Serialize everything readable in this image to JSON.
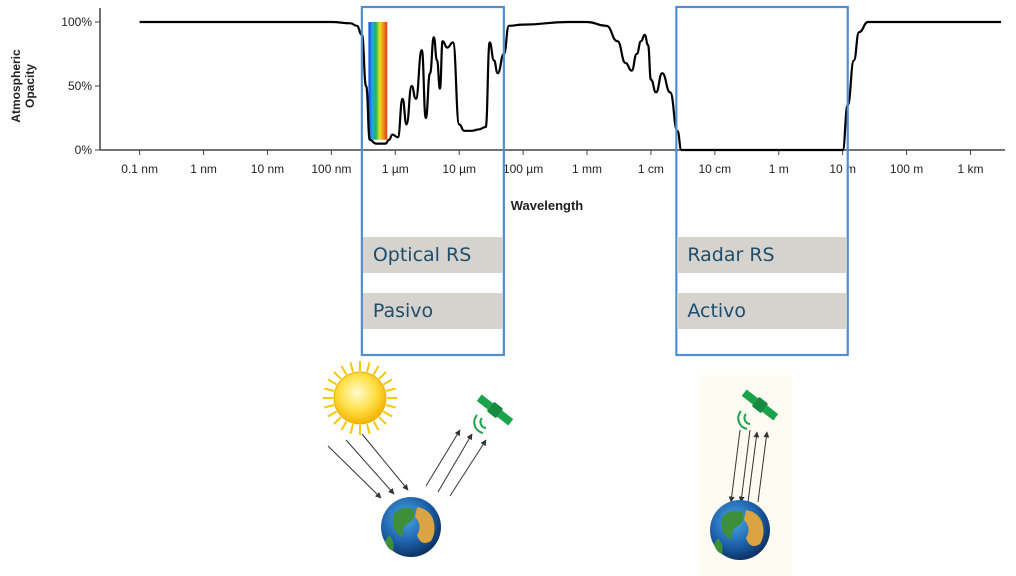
{
  "chart_data": {
    "type": "line",
    "ylabel_lines": [
      "Atmospheric",
      "Opacity"
    ],
    "xlabel": "Wavelength",
    "y_ticks": [
      "0%",
      "50%",
      "100%"
    ],
    "ylim": [
      0,
      100
    ],
    "x_scale": "log",
    "x_ticks": [
      "0.1 nm",
      "1 nm",
      "10 nm",
      "100 nm",
      "1 µm",
      "10 µm",
      "100 µm",
      "1 mm",
      "1 cm",
      "10 cm",
      "1 m",
      "10 m",
      "100 m",
      "1 km"
    ],
    "series": [
      {
        "x_m": [
          1e-10,
          3e-08,
          1e-07,
          2e-07,
          2.5e-07,
          3e-07,
          3.5e-07,
          4e-07,
          5e-07,
          7e-07,
          8e-07,
          9e-07,
          1.1e-06,
          1.3e-06,
          1.5e-06,
          1.8e-06,
          2.1e-06,
          2.6e-06,
          3e-06,
          3.5e-06,
          4e-06,
          4.5e-06,
          5e-06,
          5.5e-06,
          6.5e-06,
          8e-06,
          1e-05,
          1.2e-05,
          1.6e-05,
          2e-05,
          2.6e-05,
          3e-05,
          3.5e-05,
          4e-05,
          5e-05,
          6e-05,
          0.0001,
          0.0005,
          0.001,
          0.002,
          0.003,
          0.004,
          0.005,
          0.006,
          0.007,
          0.008,
          0.009,
          0.01,
          0.012,
          0.015,
          0.02,
          0.026,
          0.03,
          5,
          10,
          12,
          15,
          18,
          25,
          50,
          1000,
          3000
        ],
        "opacity_pct": [
          100,
          100,
          100,
          99,
          97,
          90,
          50,
          8,
          5,
          5,
          8,
          12,
          10,
          40,
          20,
          50,
          40,
          78,
          25,
          60,
          88,
          70,
          48,
          85,
          80,
          84,
          20,
          15,
          15,
          16,
          18,
          84,
          70,
          60,
          75,
          97,
          98,
          100,
          100,
          97,
          85,
          68,
          62,
          75,
          85,
          90,
          82,
          55,
          45,
          60,
          45,
          15,
          0,
          0,
          0,
          35,
          70,
          92,
          100,
          100,
          100,
          100
        ]
      }
    ],
    "visible_spectrum_band": {
      "from_m": 3.8e-07,
      "to_m": 7.5e-07
    }
  },
  "regions": [
    {
      "name": "optical",
      "from_m": 3e-07,
      "to_m": 5e-05,
      "labels": [
        "Optical RS",
        "Pasivo"
      ]
    },
    {
      "name": "radar",
      "from_m": 0.025,
      "to_m": 12,
      "labels": [
        "Radar RS",
        "Activo"
      ]
    }
  ],
  "colors": {
    "region_border": "#4f8fd0",
    "label_bg": "#d6d3ce",
    "label_text": "#1d4e6e",
    "satellite": "#1aa34a",
    "sun": "#f7c800",
    "curve": "#000000",
    "axis": "#444444"
  },
  "illustration": {
    "left": {
      "icons": [
        "sun-icon",
        "satellite-icon",
        "earth-icon"
      ],
      "arrows": "sunlight-down-then-reflected-up"
    },
    "right": {
      "icons": [
        "satellite-icon",
        "earth-icon"
      ],
      "arrows": "radar-pulse-down-and-echo-up"
    }
  }
}
